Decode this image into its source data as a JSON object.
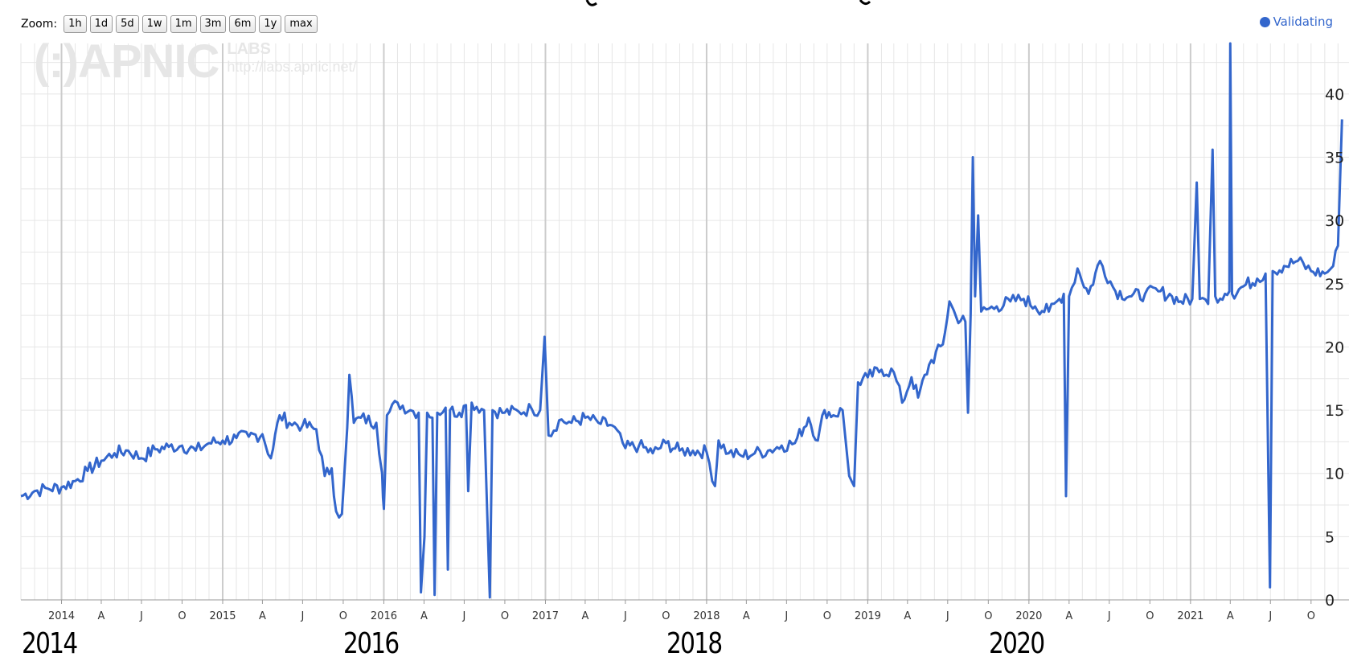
{
  "zoom": {
    "label": "Zoom:",
    "buttons": [
      "1h",
      "1d",
      "5d",
      "1w",
      "1m",
      "3m",
      "6m",
      "1y",
      "max"
    ]
  },
  "legend": {
    "label": "Validating",
    "color": "#3366cc"
  },
  "watermark": {
    "logo": "(:)APNIC",
    "labs": "LABS",
    "url": "http://labs.apnic.net/"
  },
  "colors": {
    "series": "#3366cc",
    "grid": "#e6e6e6",
    "grid_major": "#cccccc"
  },
  "chart_data": {
    "type": "line",
    "title": "",
    "xlabel": "",
    "ylabel": "",
    "ylim": [
      0,
      44
    ],
    "y_ticks": [
      "0",
      "5",
      "10",
      "15",
      "20",
      "25",
      "30",
      "35",
      "40"
    ],
    "x_range": [
      "2013-10-01",
      "2021-12-15"
    ],
    "x_ticks": [
      {
        "date": "2014-01-01",
        "label": "2014",
        "major": true
      },
      {
        "date": "2014-04-01",
        "label": "A"
      },
      {
        "date": "2014-07-01",
        "label": "J"
      },
      {
        "date": "2014-10-01",
        "label": "O"
      },
      {
        "date": "2015-01-01",
        "label": "2015",
        "major": true
      },
      {
        "date": "2015-04-01",
        "label": "A"
      },
      {
        "date": "2015-07-01",
        "label": "J"
      },
      {
        "date": "2015-10-01",
        "label": "O"
      },
      {
        "date": "2016-01-01",
        "label": "2016",
        "major": true
      },
      {
        "date": "2016-04-01",
        "label": "A"
      },
      {
        "date": "2016-07-01",
        "label": "J"
      },
      {
        "date": "2016-10-01",
        "label": "O"
      },
      {
        "date": "2017-01-01",
        "label": "2017",
        "major": true
      },
      {
        "date": "2017-04-01",
        "label": "A"
      },
      {
        "date": "2017-07-01",
        "label": "J"
      },
      {
        "date": "2017-10-01",
        "label": "O"
      },
      {
        "date": "2018-01-01",
        "label": "2018",
        "major": true
      },
      {
        "date": "2018-04-01",
        "label": "A"
      },
      {
        "date": "2018-07-01",
        "label": "J"
      },
      {
        "date": "2018-10-01",
        "label": "O"
      },
      {
        "date": "2019-01-01",
        "label": "2019",
        "major": true
      },
      {
        "date": "2019-04-01",
        "label": "A"
      },
      {
        "date": "2019-07-01",
        "label": "J"
      },
      {
        "date": "2019-10-01",
        "label": "O"
      },
      {
        "date": "2020-01-01",
        "label": "2020",
        "major": true
      },
      {
        "date": "2020-04-01",
        "label": "A"
      },
      {
        "date": "2020-07-01",
        "label": "J"
      },
      {
        "date": "2020-10-01",
        "label": "O"
      },
      {
        "date": "2021-01-01",
        "label": "2021",
        "major": true
      },
      {
        "date": "2021-04-01",
        "label": "A"
      },
      {
        "date": "2021-07-01",
        "label": "J"
      },
      {
        "date": "2021-10-01",
        "label": "O"
      }
    ],
    "grid": true,
    "legend_position": "top-right",
    "series": [
      {
        "name": "Validating",
        "color": "#3366cc",
        "points": [
          [
            "2013-10-01",
            8.2
          ],
          [
            "2013-11-01",
            8.6
          ],
          [
            "2013-12-01",
            8.8
          ],
          [
            "2014-01-01",
            8.9
          ],
          [
            "2014-02-01",
            9.4
          ],
          [
            "2014-03-01",
            10.2
          ],
          [
            "2014-04-01",
            11.0
          ],
          [
            "2014-05-01",
            11.6
          ],
          [
            "2014-06-01",
            11.8
          ],
          [
            "2014-07-01",
            11.2
          ],
          [
            "2014-08-01",
            11.9
          ],
          [
            "2014-09-01",
            12.1
          ],
          [
            "2014-10-01",
            12.2
          ],
          [
            "2014-11-01",
            11.8
          ],
          [
            "2014-12-01",
            12.4
          ],
          [
            "2015-01-01",
            12.6
          ],
          [
            "2015-02-01",
            12.8
          ],
          [
            "2015-03-01",
            12.9
          ],
          [
            "2015-04-01",
            13.1
          ],
          [
            "2015-04-20",
            11.2
          ],
          [
            "2015-05-10",
            14.6
          ],
          [
            "2015-06-01",
            14.0
          ],
          [
            "2015-07-01",
            13.8
          ],
          [
            "2015-08-01",
            13.5
          ],
          [
            "2015-08-20",
            9.8
          ],
          [
            "2015-09-05",
            10.4
          ],
          [
            "2015-09-15",
            7.0
          ],
          [
            "2015-09-28",
            6.8
          ],
          [
            "2015-10-10",
            13.6
          ],
          [
            "2015-10-15",
            17.8
          ],
          [
            "2015-10-25",
            14.0
          ],
          [
            "2015-11-10",
            14.4
          ],
          [
            "2015-12-15",
            14.0
          ],
          [
            "2015-12-28",
            10.0
          ],
          [
            "2016-01-01",
            7.2
          ],
          [
            "2016-01-08",
            14.6
          ],
          [
            "2016-02-01",
            15.6
          ],
          [
            "2016-03-01",
            15.0
          ],
          [
            "2016-03-20",
            14.8
          ],
          [
            "2016-03-25",
            0.6
          ],
          [
            "2016-04-02",
            5.0
          ],
          [
            "2016-04-08",
            14.8
          ],
          [
            "2016-04-20",
            14.4
          ],
          [
            "2016-04-25",
            0.4
          ],
          [
            "2016-05-01",
            14.8
          ],
          [
            "2016-05-20",
            15.2
          ],
          [
            "2016-05-25",
            2.4
          ],
          [
            "2016-05-30",
            15.0
          ],
          [
            "2016-06-20",
            14.8
          ],
          [
            "2016-07-05",
            15.4
          ],
          [
            "2016-07-10",
            8.6
          ],
          [
            "2016-07-18",
            15.6
          ],
          [
            "2016-08-15",
            15.0
          ],
          [
            "2016-08-28",
            0.2
          ],
          [
            "2016-09-03",
            15.0
          ],
          [
            "2016-10-01",
            14.8
          ],
          [
            "2016-11-01",
            14.9
          ],
          [
            "2016-12-01",
            15.1
          ],
          [
            "2016-12-20",
            15.0
          ],
          [
            "2016-12-30",
            20.8
          ],
          [
            "2017-01-08",
            13.0
          ],
          [
            "2017-02-01",
            14.2
          ],
          [
            "2017-03-01",
            14.0
          ],
          [
            "2017-04-01",
            14.4
          ],
          [
            "2017-05-01",
            14.0
          ],
          [
            "2017-06-01",
            13.8
          ],
          [
            "2017-07-01",
            12.0
          ],
          [
            "2017-08-01",
            12.2
          ],
          [
            "2017-09-01",
            11.6
          ],
          [
            "2017-10-01",
            12.4
          ],
          [
            "2017-11-01",
            11.8
          ],
          [
            "2017-12-01",
            11.8
          ],
          [
            "2018-01-01",
            11.7
          ],
          [
            "2018-01-20",
            9.0
          ],
          [
            "2018-01-28",
            12.6
          ],
          [
            "2018-02-20",
            11.6
          ],
          [
            "2018-03-20",
            11.4
          ],
          [
            "2018-04-20",
            11.6
          ],
          [
            "2018-05-20",
            11.8
          ],
          [
            "2018-06-20",
            12.2
          ],
          [
            "2018-07-20",
            12.4
          ],
          [
            "2018-08-20",
            14.4
          ],
          [
            "2018-09-10",
            12.6
          ],
          [
            "2018-09-25",
            15.0
          ],
          [
            "2018-10-15",
            14.6
          ],
          [
            "2018-11-05",
            15.0
          ],
          [
            "2018-11-20",
            9.8
          ],
          [
            "2018-12-01",
            9.0
          ],
          [
            "2018-12-10",
            17.2
          ],
          [
            "2019-01-01",
            17.6
          ],
          [
            "2019-02-01",
            18.2
          ],
          [
            "2019-03-01",
            18.0
          ],
          [
            "2019-03-20",
            15.6
          ],
          [
            "2019-04-10",
            17.6
          ],
          [
            "2019-04-25",
            16.0
          ],
          [
            "2019-05-20",
            18.6
          ],
          [
            "2019-06-20",
            20.2
          ],
          [
            "2019-07-05",
            23.6
          ],
          [
            "2019-07-20",
            22.4
          ],
          [
            "2019-08-10",
            22.0
          ],
          [
            "2019-08-16",
            14.8
          ],
          [
            "2019-08-22",
            22.6
          ],
          [
            "2019-08-27",
            35.0
          ],
          [
            "2019-09-01",
            24.0
          ],
          [
            "2019-09-08",
            30.4
          ],
          [
            "2019-09-15",
            22.8
          ],
          [
            "2019-10-20",
            23.2
          ],
          [
            "2019-11-20",
            23.6
          ],
          [
            "2019-12-20",
            23.8
          ],
          [
            "2020-01-15",
            23.2
          ],
          [
            "2020-02-15",
            22.8
          ],
          [
            "2020-03-10",
            23.8
          ],
          [
            "2020-03-20",
            24.2
          ],
          [
            "2020-03-25",
            8.2
          ],
          [
            "2020-04-01",
            24.0
          ],
          [
            "2020-04-20",
            26.2
          ],
          [
            "2020-05-15",
            24.2
          ],
          [
            "2020-06-10",
            26.8
          ],
          [
            "2020-07-15",
            24.4
          ],
          [
            "2020-08-20",
            24.0
          ],
          [
            "2020-09-20",
            24.2
          ],
          [
            "2020-10-20",
            24.4
          ],
          [
            "2020-11-20",
            24.0
          ],
          [
            "2020-12-10",
            23.6
          ],
          [
            "2021-01-05",
            23.8
          ],
          [
            "2021-01-15",
            33.0
          ],
          [
            "2021-01-22",
            23.8
          ],
          [
            "2021-02-10",
            23.4
          ],
          [
            "2021-02-20",
            35.6
          ],
          [
            "2021-02-26",
            24.0
          ],
          [
            "2021-03-20",
            24.2
          ],
          [
            "2021-03-30",
            24.4
          ],
          [
            "2021-04-01",
            44.0
          ],
          [
            "2021-04-05",
            24.2
          ],
          [
            "2021-05-01",
            24.8
          ],
          [
            "2021-06-01",
            25.4
          ],
          [
            "2021-06-20",
            25.8
          ],
          [
            "2021-06-30",
            1.0
          ],
          [
            "2021-07-06",
            26.0
          ],
          [
            "2021-08-01",
            26.4
          ],
          [
            "2021-09-01",
            26.8
          ],
          [
            "2021-10-01",
            26.0
          ],
          [
            "2021-11-01",
            25.8
          ],
          [
            "2021-11-20",
            26.4
          ],
          [
            "2021-12-01",
            28.0
          ],
          [
            "2021-12-10",
            38.0
          ]
        ]
      }
    ]
  },
  "annotations": {
    "handwritten_years": [
      {
        "text": "2014",
        "date": "2014-01-01"
      },
      {
        "text": "2016",
        "date": "2016-01-01"
      },
      {
        "text": "2018",
        "date": "2018-01-01"
      },
      {
        "text": "2020",
        "date": "2020-01-01"
      }
    ]
  }
}
